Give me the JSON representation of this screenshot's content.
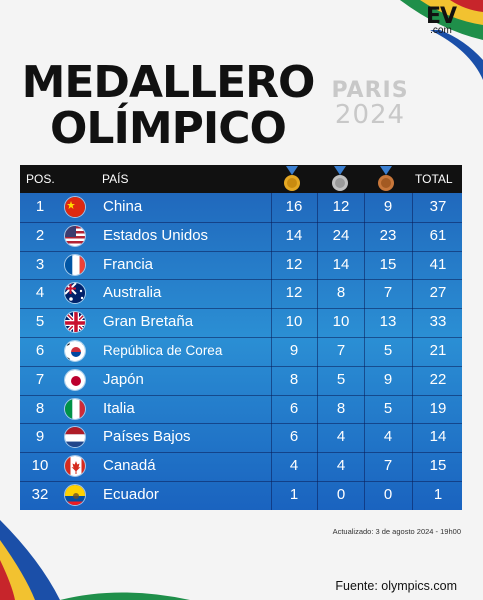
{
  "brand": {
    "logo_main": "EV",
    "logo_sub": ".com"
  },
  "title": {
    "line1": "MEDALLERO",
    "line2": "OLÍMPICO"
  },
  "event": {
    "city": "PARIS",
    "year": "2024"
  },
  "table": {
    "headers": {
      "pos": "POS.",
      "country": "PAÍS",
      "total": "TOTAL"
    },
    "medal_icons": [
      "gold-medal-icon",
      "silver-medal-icon",
      "bronze-medal-icon"
    ],
    "rows": [
      {
        "pos": "1",
        "country": "China",
        "flag": "china-flag-icon",
        "gold": "16",
        "silver": "12",
        "bronze": "9",
        "total": "37"
      },
      {
        "pos": "2",
        "country": "Estados Unidos",
        "flag": "usa-flag-icon",
        "gold": "14",
        "silver": "24",
        "bronze": "23",
        "total": "61"
      },
      {
        "pos": "3",
        "country": "Francia",
        "flag": "france-flag-icon",
        "gold": "12",
        "silver": "14",
        "bronze": "15",
        "total": "41"
      },
      {
        "pos": "4",
        "country": "Australia",
        "flag": "australia-flag-icon",
        "gold": "12",
        "silver": "8",
        "bronze": "7",
        "total": "27"
      },
      {
        "pos": "5",
        "country": "Gran Bretaña",
        "flag": "uk-flag-icon",
        "gold": "10",
        "silver": "10",
        "bronze": "13",
        "total": "33"
      },
      {
        "pos": "6",
        "country": "República de Corea",
        "flag": "korea-flag-icon",
        "gold": "9",
        "silver": "7",
        "bronze": "5",
        "total": "21"
      },
      {
        "pos": "7",
        "country": "Japón",
        "flag": "japan-flag-icon",
        "gold": "8",
        "silver": "5",
        "bronze": "9",
        "total": "22"
      },
      {
        "pos": "8",
        "country": "Italia",
        "flag": "italy-flag-icon",
        "gold": "6",
        "silver": "8",
        "bronze": "5",
        "total": "19"
      },
      {
        "pos": "9",
        "country": "Países Bajos",
        "flag": "netherlands-flag-icon",
        "gold": "6",
        "silver": "4",
        "bronze": "4",
        "total": "14"
      },
      {
        "pos": "10",
        "country": "Canadá",
        "flag": "canada-flag-icon",
        "gold": "4",
        "silver": "4",
        "bronze": "7",
        "total": "15"
      },
      {
        "pos": "32",
        "country": "Ecuador",
        "flag": "ecuador-flag-icon",
        "gold": "1",
        "silver": "0",
        "bronze": "0",
        "total": "1"
      }
    ]
  },
  "footer": {
    "updated": "Actualizado: 3 de agosto 2024 - 19h00",
    "source": "Fuente: olympics.com"
  },
  "colors": {
    "table_blue": "#2b8fd4",
    "header_black": "#111111",
    "gold": "#e5a823",
    "silver": "#c0c0c0",
    "bronze": "#c8773a"
  }
}
